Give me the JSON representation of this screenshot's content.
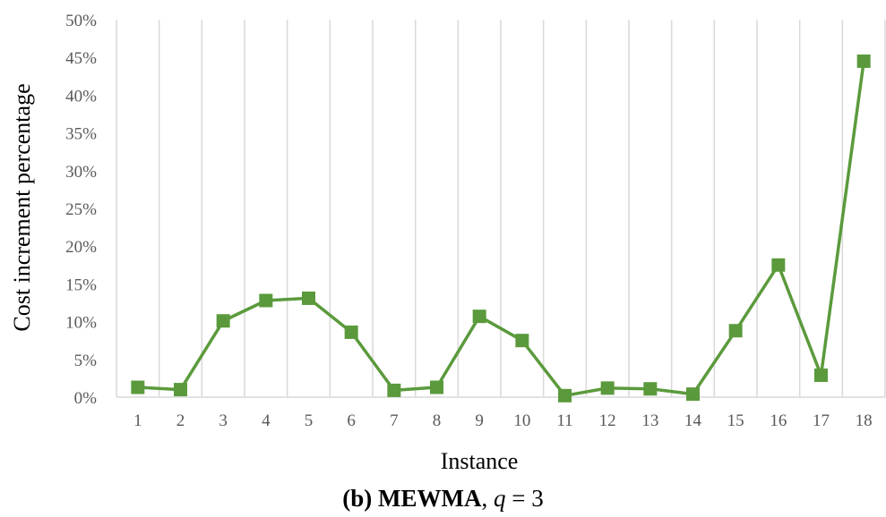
{
  "chart_data": {
    "type": "line",
    "title": "",
    "xlabel": "Instance",
    "ylabel": "Cost increment percentage",
    "x": [
      "1",
      "2",
      "3",
      "4",
      "5",
      "6",
      "7",
      "8",
      "9",
      "10",
      "11",
      "12",
      "13",
      "14",
      "15",
      "16",
      "17",
      "18"
    ],
    "series": [
      {
        "values": [
          1.3,
          1.0,
          10.1,
          12.8,
          13.1,
          8.6,
          0.9,
          1.3,
          10.7,
          7.5,
          0.2,
          1.2,
          1.1,
          0.4,
          8.8,
          17.5,
          2.9,
          44.5
        ]
      }
    ],
    "ylim": [
      0,
      50
    ],
    "yticks": [
      "0%",
      "5%",
      "10%",
      "15%",
      "20%",
      "25%",
      "30%",
      "35%",
      "40%",
      "45%",
      "50%"
    ],
    "grid": "vertical",
    "legend": "none",
    "colors": {
      "series": "#5b9a3c",
      "grid": "#d9d9d9",
      "tick": "#595959"
    }
  },
  "caption": {
    "prefix": "(b)",
    "method": "MEWMA",
    "sep": ",",
    "param": "q",
    "eq": "=",
    "value": "3"
  }
}
